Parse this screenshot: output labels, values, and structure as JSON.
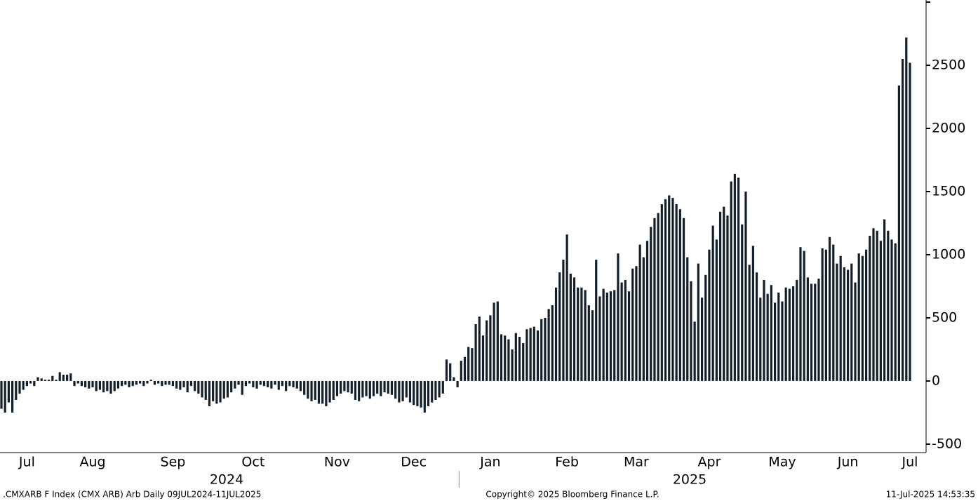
{
  "chart_data": {
    "type": "bar",
    "color": "#13202c",
    "ylim": [
      -567,
      3017
    ],
    "yticks": [
      -500,
      0,
      500,
      1000,
      1500,
      2000,
      2500
    ],
    "grid": false,
    "years": [
      "2024",
      "2025"
    ],
    "categories": [
      null,
      null,
      null,
      null,
      null,
      null,
      null,
      "Jul",
      null,
      null,
      null,
      null,
      null,
      null,
      null,
      null,
      null,
      null,
      null,
      null,
      null,
      null,
      null,
      null,
      null,
      "Aug",
      null,
      null,
      null,
      null,
      null,
      null,
      null,
      null,
      null,
      null,
      null,
      null,
      null,
      null,
      null,
      null,
      null,
      null,
      null,
      null,
      null,
      "Sep",
      null,
      null,
      null,
      null,
      null,
      null,
      null,
      null,
      null,
      null,
      null,
      null,
      null,
      null,
      null,
      null,
      null,
      null,
      null,
      null,
      null,
      "Oct",
      null,
      null,
      null,
      null,
      null,
      null,
      null,
      null,
      null,
      null,
      null,
      null,
      null,
      null,
      null,
      null,
      null,
      null,
      null,
      null,
      null,
      null,
      "Nov",
      null,
      null,
      null,
      null,
      null,
      null,
      null,
      null,
      null,
      null,
      null,
      null,
      null,
      null,
      null,
      null,
      null,
      null,
      null,
      null,
      "Dec",
      null,
      null,
      null,
      null,
      null,
      null,
      null,
      null,
      null,
      null,
      null,
      null,
      null,
      null,
      null,
      null,
      null,
      null,
      null,
      null,
      "Jan",
      null,
      null,
      null,
      null,
      null,
      null,
      null,
      null,
      null,
      null,
      null,
      null,
      null,
      null,
      null,
      null,
      null,
      null,
      null,
      null,
      "Feb",
      null,
      null,
      null,
      null,
      null,
      null,
      null,
      null,
      null,
      null,
      null,
      null,
      null,
      null,
      null,
      null,
      null,
      null,
      "Mar",
      null,
      null,
      null,
      null,
      null,
      null,
      null,
      null,
      null,
      null,
      null,
      null,
      null,
      null,
      null,
      null,
      null,
      null,
      null,
      "Apr",
      null,
      null,
      null,
      null,
      null,
      null,
      null,
      null,
      null,
      null,
      null,
      null,
      null,
      null,
      null,
      null,
      null,
      null,
      null,
      "May",
      null,
      null,
      null,
      null,
      null,
      null,
      null,
      null,
      null,
      null,
      null,
      null,
      null,
      null,
      null,
      null,
      null,
      "Jun",
      null,
      null,
      null,
      null,
      null,
      null,
      null,
      null,
      null,
      null,
      null,
      null,
      null,
      null,
      null,
      null,
      "Jul"
    ],
    "values": [
      -220,
      -250,
      -170,
      -250,
      -150,
      -100,
      -70,
      -40,
      -20,
      -40,
      30,
      20,
      10,
      10,
      40,
      10,
      70,
      50,
      50,
      60,
      -40,
      -20,
      -40,
      -50,
      -60,
      -50,
      -80,
      -70,
      -90,
      -80,
      -100,
      -80,
      -60,
      -40,
      -30,
      -50,
      -40,
      -30,
      -20,
      -40,
      -20,
      10,
      -30,
      -20,
      -40,
      -30,
      -30,
      -40,
      -60,
      -70,
      -50,
      -90,
      -40,
      -80,
      -100,
      -130,
      -150,
      -200,
      -160,
      -180,
      -170,
      -140,
      -130,
      -90,
      -60,
      -30,
      -110,
      -40,
      -20,
      -50,
      -60,
      -30,
      -40,
      -50,
      -60,
      -30,
      -70,
      -40,
      -80,
      -40,
      -50,
      -60,
      -80,
      -110,
      -140,
      -160,
      -150,
      -180,
      -180,
      -200,
      -170,
      -150,
      -120,
      -100,
      -80,
      -90,
      -100,
      -150,
      -160,
      -130,
      -120,
      -140,
      -120,
      -100,
      -120,
      -90,
      -100,
      -110,
      -140,
      -170,
      -160,
      -130,
      -170,
      -190,
      -200,
      -210,
      -250,
      -200,
      -170,
      -150,
      -130,
      -100,
      170,
      140,
      30,
      -50,
      160,
      190,
      270,
      260,
      450,
      510,
      360,
      480,
      520,
      620,
      630,
      370,
      360,
      330,
      250,
      380,
      350,
      300,
      410,
      420,
      430,
      400,
      490,
      500,
      570,
      600,
      740,
      860,
      960,
      1160,
      850,
      820,
      740,
      740,
      720,
      600,
      560,
      960,
      670,
      730,
      700,
      710,
      720,
      1010,
      780,
      800,
      710,
      890,
      910,
      1080,
      980,
      1110,
      1220,
      1290,
      1330,
      1400,
      1440,
      1470,
      1450,
      1400,
      1360,
      1290,
      980,
      790,
      470,
      930,
      660,
      840,
      1040,
      1230,
      1120,
      1340,
      1380,
      1310,
      1580,
      1640,
      1610,
      1240,
      1500,
      920,
      1070,
      860,
      660,
      800,
      690,
      760,
      620,
      700,
      630,
      740,
      730,
      750,
      800,
      1060,
      1030,
      820,
      770,
      770,
      810,
      1050,
      1040,
      1140,
      1080,
      930,
      990,
      900,
      880,
      930,
      780,
      1010,
      990,
      1040,
      1150,
      1210,
      1190,
      1110,
      1280,
      1190,
      1120,
      1090,
      2340,
      2550,
      2720,
      2520
    ],
    "footer": {
      "left": ".CMXARB F Index (CMX ARB) Arb  Daily 09JUL2024-11JUL2025",
      "center": "Copyright© 2025 Bloomberg Finance L.P.",
      "right": "11-Jul-2025 14:53:35"
    }
  }
}
